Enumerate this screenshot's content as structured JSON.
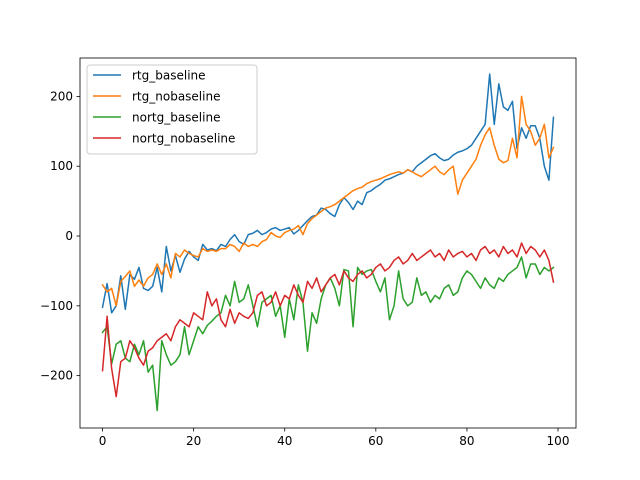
{
  "chart_data": {
    "type": "line",
    "title": "",
    "xlabel": "",
    "ylabel": "",
    "xlim": [
      -4.95,
      103.95
    ],
    "ylim": [
      -275,
      255
    ],
    "xticks": [
      0,
      20,
      40,
      60,
      80,
      100
    ],
    "yticks": [
      -200,
      -100,
      0,
      100,
      200
    ],
    "grid": false,
    "legend_position": "top-left",
    "series": [
      {
        "name": "rtg_baseline",
        "color": "#1f77b4",
        "y": [
          -102,
          -68,
          -110,
          -100,
          -57,
          -105,
          -55,
          -62,
          -45,
          -75,
          -78,
          -72,
          -45,
          -80,
          -15,
          -50,
          -28,
          -52,
          -33,
          -22,
          -30,
          -35,
          -12,
          -20,
          -18,
          -21,
          -12,
          -15,
          -5,
          2,
          -8,
          -12,
          2,
          4,
          8,
          2,
          5,
          10,
          12,
          8,
          10,
          12,
          3,
          8,
          15,
          22,
          28,
          30,
          40,
          38,
          32,
          28,
          45,
          55,
          48,
          38,
          50,
          45,
          62,
          65,
          70,
          74,
          80,
          82,
          85,
          88,
          90,
          95,
          92,
          100,
          105,
          110,
          115,
          118,
          112,
          108,
          110,
          116,
          120,
          122,
          125,
          130,
          140,
          150,
          160,
          232,
          160,
          218,
          185,
          180,
          193,
          125,
          155,
          140,
          158,
          158,
          140,
          100,
          80,
          170
        ]
      },
      {
        "name": "rtg_nobaseline",
        "color": "#ff7f0e",
        "y": [
          -70,
          -80,
          -75,
          -100,
          -65,
          -58,
          -50,
          -72,
          -63,
          -72,
          -60,
          -55,
          -40,
          -55,
          -40,
          -60,
          -25,
          -30,
          -20,
          -25,
          -28,
          -30,
          -18,
          -22,
          -20,
          -22,
          -18,
          -18,
          -12,
          -15,
          -22,
          -10,
          -15,
          -12,
          -15,
          -8,
          -5,
          5,
          0,
          -2,
          5,
          8,
          10,
          15,
          2,
          18,
          25,
          30,
          35,
          40,
          42,
          45,
          50,
          55,
          60,
          65,
          68,
          70,
          75,
          78,
          80,
          82,
          85,
          88,
          90,
          92,
          90,
          95,
          92,
          88,
          85,
          90,
          95,
          100,
          92,
          88,
          95,
          100,
          60,
          80,
          90,
          100,
          110,
          130,
          145,
          155,
          130,
          110,
          105,
          108,
          140,
          112,
          200,
          160,
          150,
          130,
          140,
          160,
          112,
          127
        ]
      },
      {
        "name": "nortg_baseline",
        "color": "#2ca02c",
        "y": [
          -138,
          -130,
          -183,
          -155,
          -150,
          -175,
          -180,
          -155,
          -170,
          -150,
          -195,
          -185,
          -250,
          -150,
          -170,
          -185,
          -180,
          -170,
          -130,
          -170,
          -150,
          -130,
          -140,
          -128,
          -122,
          -115,
          -110,
          -85,
          -100,
          -65,
          -95,
          -90,
          -70,
          -100,
          -130,
          -95,
          -90,
          -85,
          -115,
          -100,
          -145,
          -90,
          -120,
          -70,
          -95,
          -165,
          -110,
          -125,
          -90,
          -70,
          -60,
          -75,
          -100,
          -48,
          -50,
          -130,
          -45,
          -55,
          -50,
          -48,
          -65,
          -80,
          -60,
          -120,
          -100,
          -50,
          -90,
          -100,
          -95,
          -60,
          -85,
          -80,
          -95,
          -85,
          -90,
          -75,
          -70,
          -85,
          -80,
          -60,
          -50,
          -55,
          -65,
          -75,
          -60,
          -70,
          -75,
          -60,
          -65,
          -55,
          -50,
          -45,
          -30,
          -60,
          -40,
          -40,
          -55,
          -45,
          -50,
          -45
        ]
      },
      {
        "name": "nortg_nobaseline",
        "color": "#d62728",
        "y": [
          -193,
          -115,
          -190,
          -230,
          -180,
          -175,
          -150,
          -160,
          -175,
          -185,
          -165,
          -160,
          -150,
          -145,
          -140,
          -150,
          -130,
          -120,
          -125,
          -130,
          -110,
          -115,
          -120,
          -80,
          -100,
          -90,
          -120,
          -130,
          -105,
          -125,
          -110,
          -115,
          -118,
          -110,
          -85,
          -80,
          -100,
          -95,
          -80,
          -100,
          -85,
          -90,
          -70,
          -85,
          -95,
          -65,
          -75,
          -60,
          -80,
          -70,
          -60,
          -55,
          -70,
          -50,
          -60,
          -65,
          -55,
          -50,
          -60,
          -55,
          -45,
          -40,
          -50,
          -45,
          -35,
          -30,
          -40,
          -35,
          -25,
          -35,
          -30,
          -25,
          -20,
          -30,
          -25,
          -35,
          -20,
          -30,
          -25,
          -22,
          -30,
          -25,
          -35,
          -20,
          -15,
          -25,
          -20,
          -30,
          -15,
          -25,
          -20,
          -30,
          -10,
          -25,
          -15,
          -20,
          -30,
          -20,
          -35,
          -66
        ]
      }
    ]
  }
}
